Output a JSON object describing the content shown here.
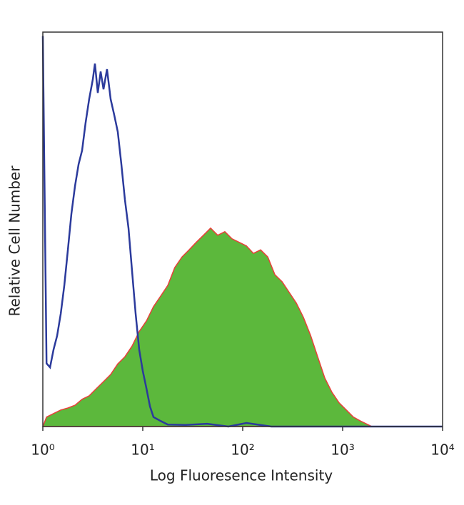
{
  "chart_data": {
    "type": "histogram-overlay",
    "xlabel": "Log Fluoresence Intensity",
    "ylabel": "Relative Cell Number",
    "xscale": "log",
    "xlim": [
      1,
      10000
    ],
    "ylim": [
      0,
      100
    ],
    "xticks": [
      {
        "value": 1,
        "label": "10⁰"
      },
      {
        "value": 10,
        "label": "10¹"
      },
      {
        "value": 100,
        "label": "10²"
      },
      {
        "value": 1000,
        "label": "10³"
      },
      {
        "value": 10000,
        "label": "10⁴"
      }
    ],
    "series": [
      {
        "style": "area",
        "color": "#5cb83c",
        "edge_color": "#e8403a",
        "x": [
          1,
          1.09,
          1.28,
          1.51,
          1.78,
          2.1,
          2.47,
          2.91,
          3.43,
          4.05,
          4.77,
          5.62,
          6.63,
          7.82,
          9.21,
          10.9,
          12.8,
          15.1,
          17.8,
          20.9,
          24.7,
          29.1,
          34.3,
          40.5,
          47.7,
          56.2,
          66.3,
          78.1,
          92.1,
          109,
          128,
          151,
          178,
          210,
          248,
          292,
          344,
          405,
          478,
          562,
          663,
          782,
          922,
          1090,
          1280,
          1510,
          1780,
          1960
        ],
        "values": [
          0,
          2.4,
          3.3,
          4.2,
          4.7,
          5.4,
          6.9,
          7.8,
          9.6,
          11.4,
          13.2,
          15.9,
          17.7,
          20.4,
          24.1,
          26.8,
          30.4,
          33.1,
          35.8,
          40.3,
          43,
          44.8,
          46.7,
          48.5,
          50.3,
          48.5,
          49.4,
          47.6,
          46.7,
          45.8,
          43.9,
          44.8,
          43,
          38.5,
          36.7,
          34,
          31.3,
          27.7,
          23.1,
          17.7,
          12.3,
          8.7,
          6,
          4.2,
          2.4,
          1.4,
          0.5,
          0
        ]
      },
      {
        "style": "line",
        "color": "#2b3a9c",
        "x": [
          1,
          1.09,
          1.18,
          1.28,
          1.39,
          1.51,
          1.64,
          1.78,
          1.93,
          2.1,
          2.28,
          2.47,
          2.68,
          2.91,
          3.16,
          3.32,
          3.55,
          3.79,
          4.05,
          4.39,
          4.77,
          5.18,
          5.62,
          6.11,
          6.63,
          7.2,
          7.82,
          8.48,
          9.21,
          10,
          10.9,
          11.8,
          12.8,
          15.1,
          17.8,
          26.8,
          44,
          71.9,
          109,
          193,
          10000
        ],
        "values": [
          99,
          16,
          15,
          19.5,
          23,
          28.6,
          35.8,
          44.8,
          53.9,
          61,
          66.5,
          70,
          77,
          83,
          88,
          92,
          84.6,
          90,
          85.5,
          90.6,
          83,
          79,
          74.7,
          66.5,
          57.5,
          50.3,
          39.4,
          28.6,
          19.5,
          14.1,
          9.6,
          5.1,
          2.4,
          1.4,
          0.5,
          0.4,
          0.7,
          0,
          0.9,
          0,
          0
        ]
      }
    ]
  }
}
